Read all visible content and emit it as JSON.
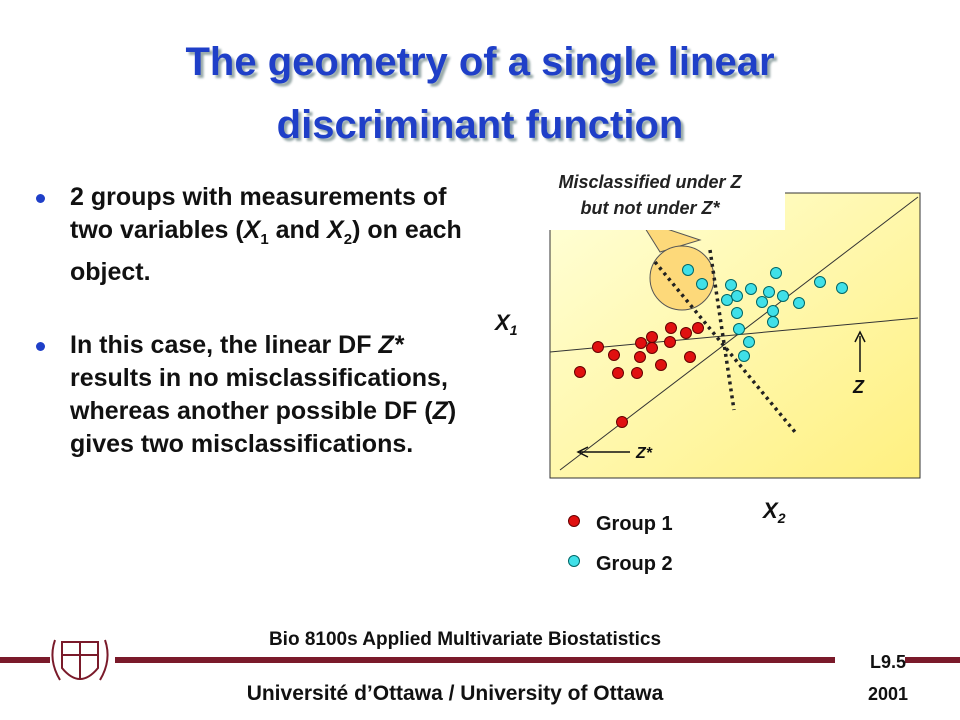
{
  "header": {
    "title_lines": [
      "The geometry of a single linear",
      "discriminant function"
    ]
  },
  "bullets": [
    {
      "parts": [
        "2 groups with measurements of two variables (",
        "X",
        "1",
        " and ",
        "X",
        "2",
        ") on each object."
      ]
    },
    {
      "parts": [
        "In this case, the  linear DF ",
        "Z*",
        " results in no misclassifications, whereas another possible DF (",
        "Z",
        ") gives two misclassifications."
      ]
    }
  ],
  "diagram": {
    "callout": [
      "Misclassified under Z",
      "but not  under Z*"
    ],
    "x1_label": [
      "X",
      "1"
    ],
    "x2_label": [
      "X",
      "2"
    ],
    "z_label": "Z",
    "zstar_label": "Z*",
    "legend": [
      "Group 1",
      "Group 2"
    ]
  },
  "footer": {
    "course": "Bio 8100s Applied Multivariate Biostatistics",
    "lecture": "L9.5",
    "university": "Université d’Ottawa / University of Ottawa",
    "year": "2001"
  }
}
